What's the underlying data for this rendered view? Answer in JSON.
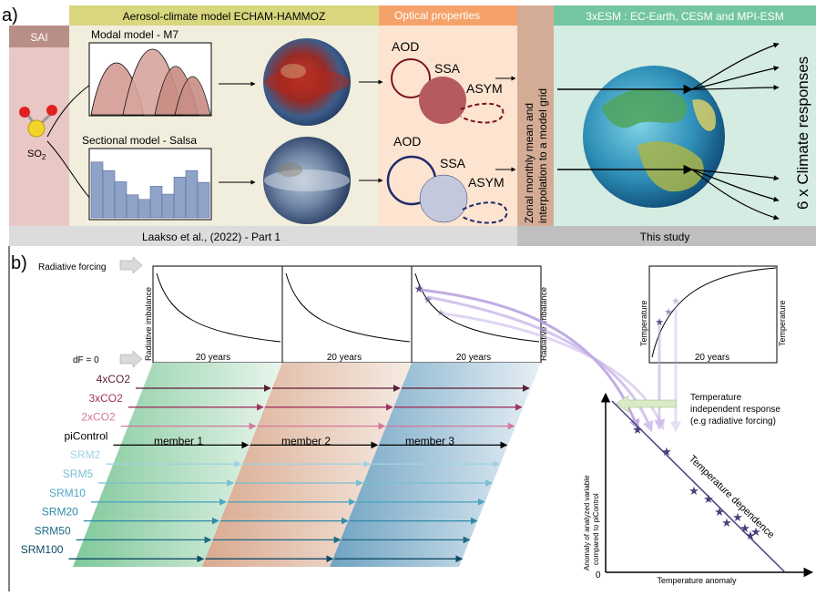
{
  "panel_a": {
    "label": "a)",
    "sai": "SAI",
    "so2_main": "SO",
    "so2_sub": "2",
    "echam_header": "Aerosol-climate model ECHAM-HAMMOZ",
    "modal_title": "Modal model - M7",
    "sectional_title": "Sectional model - Salsa",
    "optical_header": "Optical properties",
    "aod": "AOD",
    "ssa": "SSA",
    "asym": "ASYM",
    "zonal_line1": "Zonal monthly mean and",
    "zonal_line2": "interpolation to a model grid",
    "esm_header": "3xESM : EC-Earth, CESM and MPI-ESM",
    "climate_responses": "6 x Climate responses",
    "footer_left": "Laakso et al., (2022) - Part 1",
    "footer_right": "This study",
    "sectional_bins": [
      0.85,
      0.72,
      0.55,
      0.35,
      0.28,
      0.48,
      0.36,
      0.62,
      0.72,
      0.54
    ]
  },
  "panel_b": {
    "label": "b)",
    "radiative_forcing": "Radiative forcing",
    "df_zero": "dF = 0",
    "radiative_imbalance": "Radiative imbalance",
    "twenty_years": "20 years",
    "temperature": "Temperature",
    "scenarios": [
      {
        "label": "4xCO2",
        "color": "#5a1f35"
      },
      {
        "label": "3xCO2",
        "color": "#a0345e"
      },
      {
        "label": "2xCO2",
        "color": "#d4789c"
      },
      {
        "label": "piControl",
        "color": "#000000"
      },
      {
        "label": "SRM2",
        "color": "#9fd3e3"
      },
      {
        "label": "SRM5",
        "color": "#78bfd2"
      },
      {
        "label": "SRM10",
        "color": "#4ea7c1"
      },
      {
        "label": "SRM20",
        "color": "#2f8aa8"
      },
      {
        "label": "SRM50",
        "color": "#1d6b87"
      },
      {
        "label": "SRM100",
        "color": "#0f4a64"
      }
    ],
    "members": [
      "member 1",
      "member 2",
      "member 3"
    ],
    "temp_independent": "Temperature",
    "temp_independent2": "independent response",
    "temp_independent3": "(e.g radiative forcing)",
    "temp_dependence": "Temperature dependence",
    "y_axis_line1": "Anomaly of analyzed variable",
    "y_axis_line2": "compared to piControl",
    "x_axis": "Temperature anomaly",
    "origin": "0"
  },
  "colors": {
    "sai_bg": "#e8c7c4",
    "echam_bg": "#f1eedd",
    "echam_header": "#d9d77e",
    "optical_bg": "#fde4d0",
    "optical_header": "#f4a26a",
    "zonal_bg": "#d4ac96",
    "esm_bg": "#d5ece2",
    "esm_header": "#74c6a1",
    "footer_left": "#dcdcdc",
    "footer_right": "#bfbfbf",
    "modal_fill": "#d7a59d",
    "sectional_fill": "#8fa3c9",
    "red_dark": "#7a1520",
    "navy": "#1f2a6b",
    "star": "#4a3f7a",
    "purple_arrow": "#b79ee0"
  }
}
